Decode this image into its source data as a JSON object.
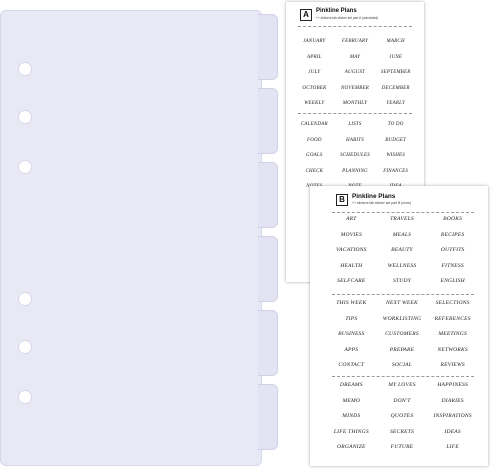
{
  "divider": {
    "tab_count": 6,
    "hole_count": 6,
    "colors": {
      "page": "#e9e9f6",
      "tab": "#e3e3f3",
      "border": "#d0d1e6"
    }
  },
  "sheet_a": {
    "badge": "A",
    "title": "Pinkline Plans",
    "subtitle": "++ stickers tab sticker set part A (annotated)",
    "groups": [
      [
        "JANUARY",
        "FEBRUARY",
        "MARCH",
        "APRIL",
        "MAY",
        "JUNE",
        "JULY",
        "AUGUST",
        "SEPTEMBER",
        "OCTOBER",
        "NOVEMBER",
        "DECEMBER",
        "WEEKLY",
        "MONTHLY",
        "YEARLY"
      ],
      [
        "CALENDAR",
        "LISTS",
        "TO DO",
        "FOOD",
        "HABITS",
        "BUDGET",
        "GOALS",
        "SCHEDULES",
        "WISHES",
        "CHECK",
        "PLANNING",
        "FINANCES",
        "NOTES",
        "NOTE",
        "IDEA"
      ]
    ]
  },
  "sheet_b": {
    "badge": "B",
    "title": "Pinkline Plans",
    "subtitle": "++ stickers tab sticker set part B (more)",
    "groups": [
      [
        "ART",
        "TRAVELS",
        "BOOKS",
        "MOVIES",
        "MEALS",
        "RECIPES",
        "VACATIONS",
        "BEAUTY",
        "OUTFITS",
        "HEALTH",
        "WELLNESS",
        "FITNESS",
        "SELFCARE",
        "STUDY",
        "ENGLISH"
      ],
      [
        "THIS WEEK",
        "NEXT WEEK",
        "SELECTIONS",
        "TIPS",
        "WORKLISTING",
        "REFERENCES",
        "BUSINESS",
        "CUSTOMERS",
        "MEETINGS",
        "APPS",
        "PREPARE",
        "NETWORKS",
        "CONTACT",
        "SOCIAL",
        "REVIEWS"
      ],
      [
        "DREAMS",
        "MY LOVES",
        "HAPPINESS",
        "MEMO",
        "DON'T",
        "DIARIES",
        "MINDS",
        "QUOTES",
        "INSPIRATIONS",
        "LIFE THINGS",
        "SECRETS",
        "IDEAS",
        "ORGANIZE",
        "FUTURE",
        "LIFE"
      ]
    ]
  }
}
